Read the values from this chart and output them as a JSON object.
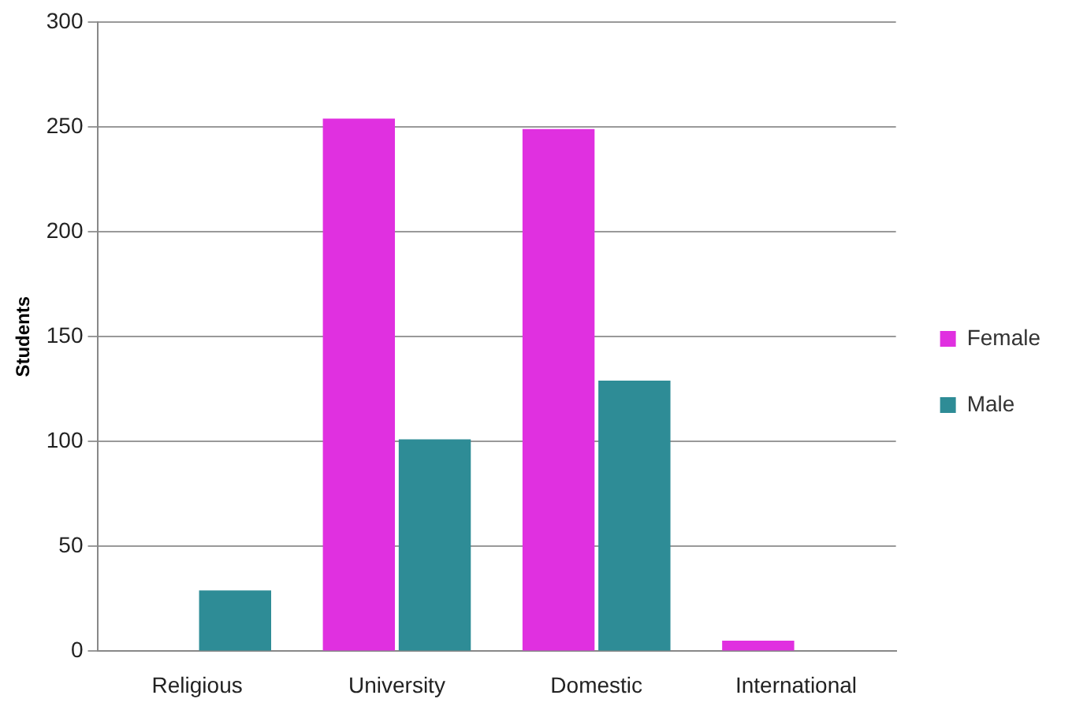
{
  "chart_data": {
    "type": "bar",
    "ylabel": "Students",
    "categories": [
      "Religious",
      "University",
      "Domestic",
      "International"
    ],
    "series": [
      {
        "name": "Female",
        "color": "#e030e0",
        "values": [
          0,
          254,
          249,
          5
        ]
      },
      {
        "name": "Male",
        "color": "#2e8c96",
        "values": [
          29,
          101,
          129,
          0
        ]
      }
    ],
    "ylim": [
      0,
      300
    ],
    "yticks": [
      0,
      50,
      100,
      150,
      200,
      250,
      300
    ],
    "grid": "y",
    "legend": "right"
  }
}
